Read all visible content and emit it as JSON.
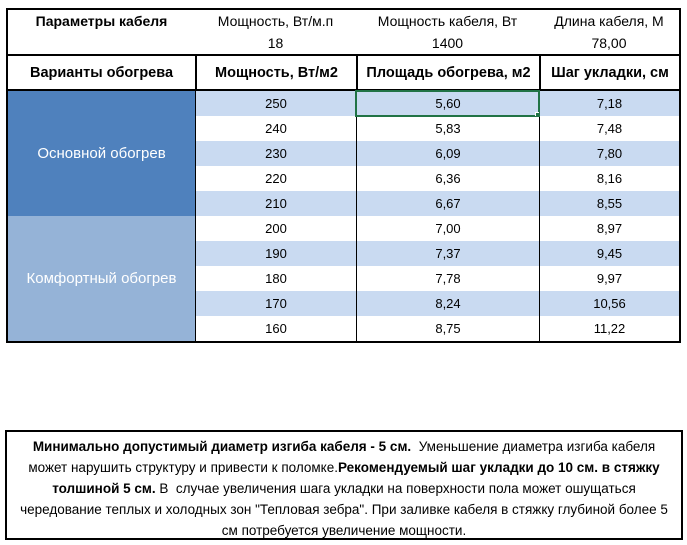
{
  "top": {
    "title": "Параметры кабеля",
    "cols": [
      {
        "label": "Мощность, Вт/м.п",
        "value": "18"
      },
      {
        "label": "Мощность кабеля, Вт",
        "value": "1400"
      },
      {
        "label": "Длина кабеля, М",
        "value": "78,00"
      }
    ]
  },
  "table": {
    "headers": [
      "Варианты обогрева",
      "Мощность, Вт/м2",
      "Площадь обогрева, м2",
      "Шаг укладки, см"
    ],
    "groups": [
      {
        "label": "Основной обогрев",
        "color": "#4F81BD",
        "rows": [
          [
            "250",
            "5,60",
            "7,18"
          ],
          [
            "240",
            "5,83",
            "7,48"
          ],
          [
            "230",
            "6,09",
            "7,80"
          ],
          [
            "220",
            "6,36",
            "8,16"
          ],
          [
            "210",
            "6,67",
            "8,55"
          ]
        ]
      },
      {
        "label": "Комфортный обогрев",
        "color": "#95B3D7",
        "rows": [
          [
            "200",
            "7,00",
            "8,97"
          ],
          [
            "190",
            "7,37",
            "9,45"
          ],
          [
            "180",
            "7,78",
            "9,97"
          ],
          [
            "170",
            "8,24",
            "10,56"
          ],
          [
            "160",
            "8,75",
            "11,22"
          ]
        ]
      }
    ],
    "band_color": "#C9DAF1",
    "selection": {
      "value": "5,60",
      "color": "#217346"
    }
  },
  "note": {
    "segments": [
      {
        "text": "Минимально допустимый диаметр изгиба кабеля - 5 см.",
        "bold": true
      },
      {
        "text": "  Уменьшение диаметра изгиба кабеля может нарушить структуру и привести к поломке.",
        "bold": false
      },
      {
        "text": "Рекомендуемый шаг укладки до 10 см. в стяжку толшиной 5 см.",
        "bold": true
      },
      {
        "text": " В  случае увеличения шага укладки на поверхности пола может ошущаться чередование теплых и холодных зон \"Тепловая зебра\". При заливке кабеля в стяжку глубиной более 5 см потребуется увеличение мощности.",
        "bold": false
      }
    ]
  }
}
